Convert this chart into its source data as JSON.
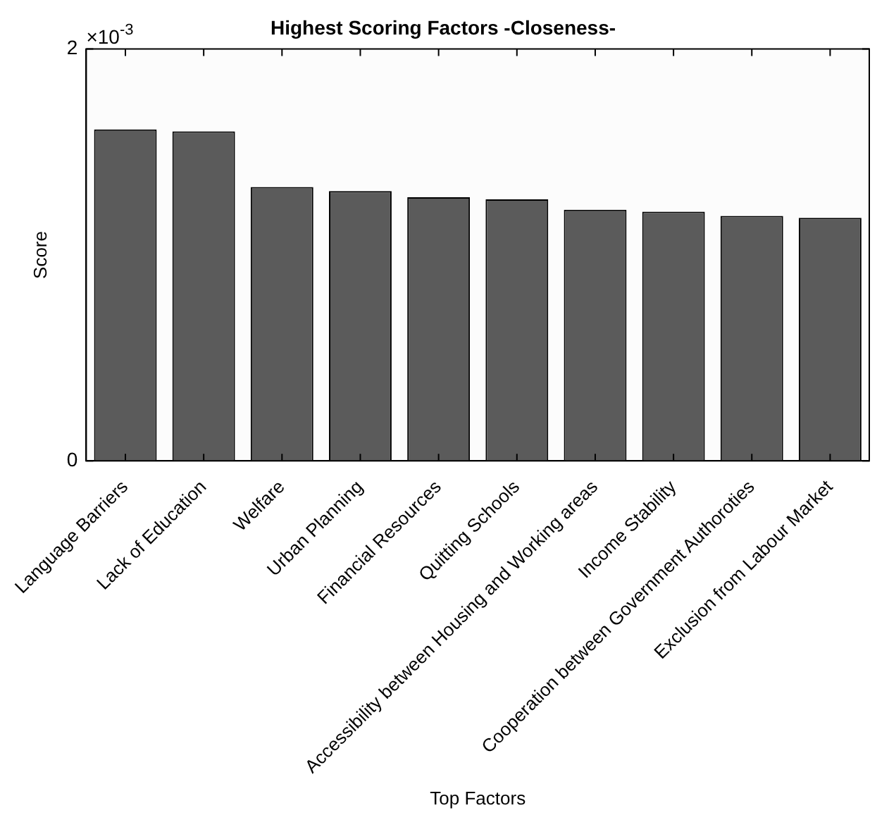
{
  "chart_data": {
    "type": "bar",
    "title": "Highest Scoring Factors -Closeness-",
    "xlabel": "Top Factors",
    "ylabel": "Score",
    "categories": [
      "Language Barriers",
      "Lack of Education",
      "Welfare",
      "Urban Planning",
      "Financial Resources",
      "Quitting Schools",
      "Accessibility between Housing and Working areas",
      "Income Stability",
      "Cooperation between Government Authoroties",
      "Exclusion from Labour Market"
    ],
    "values": [
      1.61,
      1.6,
      1.33,
      1.31,
      1.28,
      1.27,
      1.22,
      1.21,
      1.19,
      1.18
    ],
    "color": "#5b5b5b",
    "ylim": [
      0,
      2
    ],
    "yticks": [
      0,
      2
    ],
    "annotations": [
      "×10$^{-3}$"
    ],
    "grid": false,
    "legend": false
  }
}
